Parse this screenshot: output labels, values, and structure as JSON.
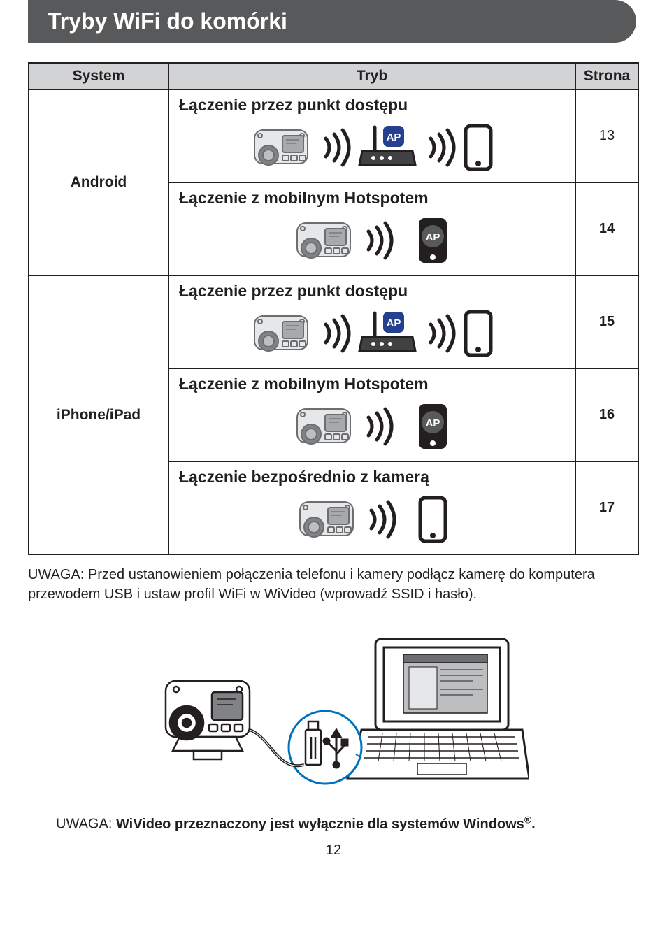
{
  "banner": {
    "title": "Tryby WiFi do komórki"
  },
  "table": {
    "headers": {
      "system": "System",
      "mode": "Tryb",
      "page": "Strona"
    },
    "rows": [
      {
        "system": "Android",
        "systemRowspan": 2,
        "title": "Łączenie przez punkt dostępu",
        "page": "13",
        "icons": "ap",
        "pageBold": false
      },
      {
        "title": "Łączenie z mobilnym Hotspotem",
        "page": "14",
        "icons": "hotspot",
        "pageBold": true
      },
      {
        "system": "iPhone/iPad",
        "systemRowspan": 3,
        "title": "Łączenie przez punkt dostępu",
        "page": "15",
        "icons": "ap",
        "pageBold": true
      },
      {
        "title": "Łączenie z mobilnym Hotspotem",
        "page": "16",
        "icons": "hotspot",
        "pageBold": true
      },
      {
        "title": "Łączenie bezpośrednio z kamerą",
        "page": "17",
        "icons": "direct",
        "pageBold": true
      }
    ]
  },
  "noteTop": "UWAGA: Przed ustanowieniem połączenia telefonu i kamery podłącz kamerę do komputera przewodem USB i ustaw profil WiFi w WiVideo (wprowadź SSID i hasło).",
  "noteBottom": {
    "prefix": "UWAGA: ",
    "bold": "WiVideo przeznaczony jest wyłącznie dla systemów Windows",
    "suffix": "."
  },
  "pageNumber": "12",
  "colors": {
    "bannerBg": "#58595b",
    "bannerText": "#ffffff",
    "headerBg": "#d1d3d4",
    "stroke": "#231f20",
    "circleBlue": "#0072bc",
    "apBlue": "#25408f",
    "iconFill": "#414042"
  }
}
